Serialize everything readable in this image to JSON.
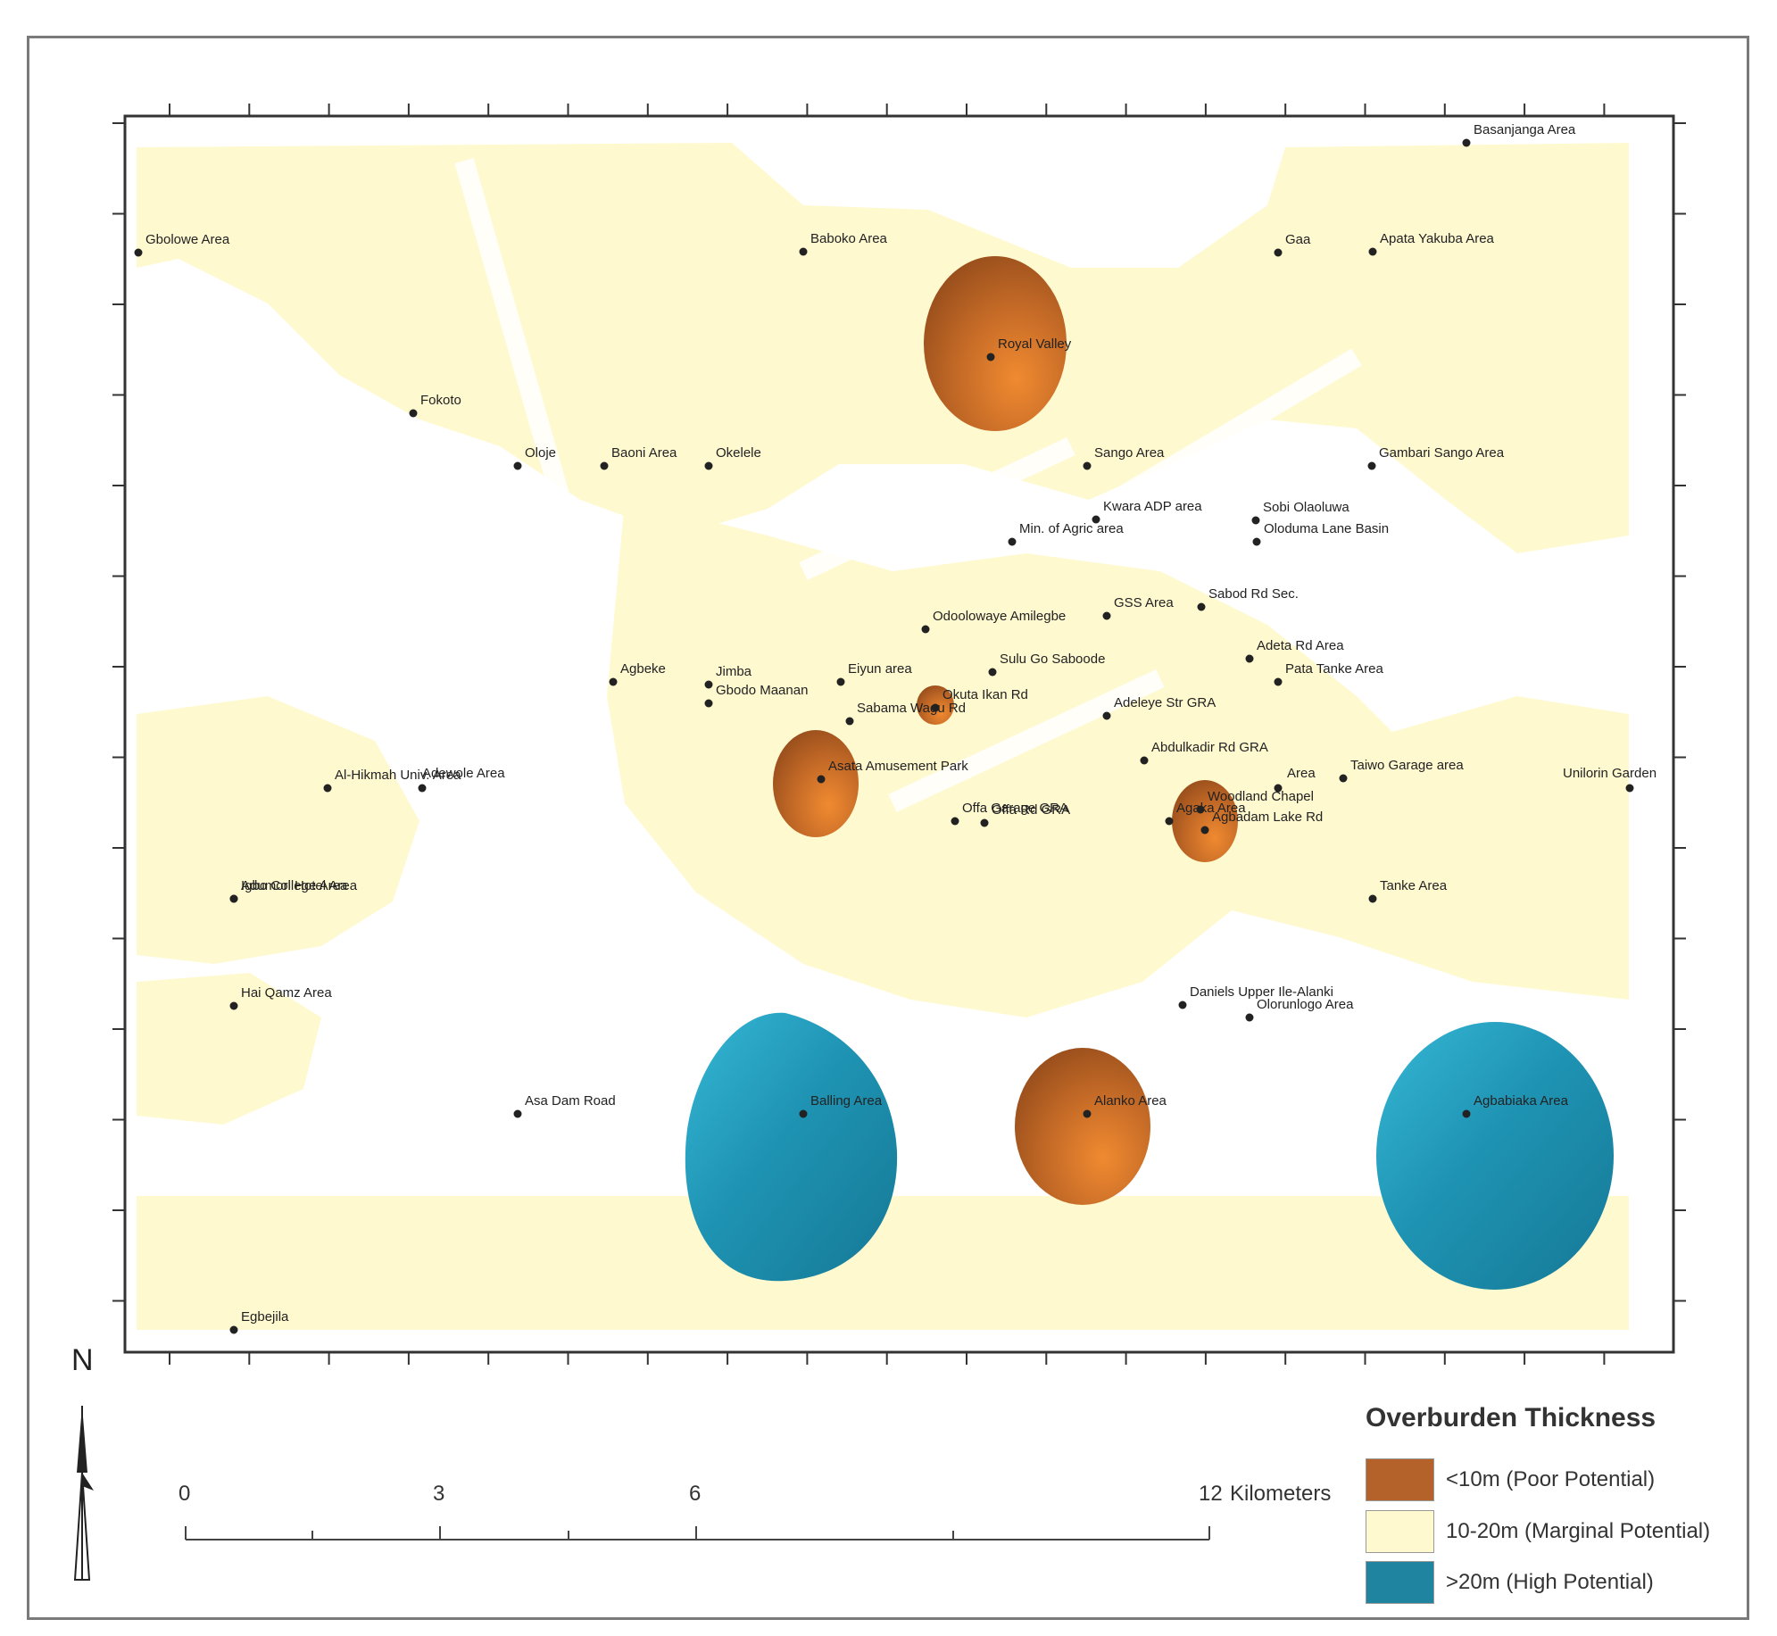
{
  "legend": {
    "title": "Overburden Thickness",
    "items": [
      {
        "label": "<10m (Poor Potential)",
        "color": "#b4612a"
      },
      {
        "label": "10-20m (Marginal Potential)",
        "color": "#fff9d0"
      },
      {
        "label": ">20m (High Potential)",
        "color": "#1e84a0"
      }
    ]
  },
  "north_arrow": {
    "letter": "N"
  },
  "scale_bar": {
    "ticks": [
      "0",
      "3",
      "6",
      "12"
    ],
    "unit": "Kilometers"
  },
  "places": [
    {
      "name": "Gbolowe Area"
    },
    {
      "name": "Baboko Area"
    },
    {
      "name": "Gaa"
    },
    {
      "name": "Apata Yakuba Area"
    },
    {
      "name": "Basanjanga Area"
    },
    {
      "name": "Royal Valley"
    },
    {
      "name": "Fokoto"
    },
    {
      "name": "Oloje"
    },
    {
      "name": "Baoni Area"
    },
    {
      "name": "Okelele"
    },
    {
      "name": "Sango Area"
    },
    {
      "name": "Gambari Sango Area"
    },
    {
      "name": "Kwara ADP area"
    },
    {
      "name": "Sobi Olaoluwa"
    },
    {
      "name": "Min. of Agric area"
    },
    {
      "name": "Oloduma Lane Basin"
    },
    {
      "name": "GSS Area"
    },
    {
      "name": "Sabod Rd Sec."
    },
    {
      "name": "Odoolowaye Amilegbe"
    },
    {
      "name": "Adeta Rd Area"
    },
    {
      "name": "Pata Tanke Area"
    },
    {
      "name": "Agbeke"
    },
    {
      "name": "Jimba"
    },
    {
      "name": "Gbodo Maanan"
    },
    {
      "name": "Eiyun area"
    },
    {
      "name": "Sulu Go Saboode"
    },
    {
      "name": "Okuta Ikan Rd"
    },
    {
      "name": "Adeleye Str GRA"
    },
    {
      "name": "Sabama Wagu Rd"
    },
    {
      "name": "Asata Amusement Park"
    },
    {
      "name": "Abdulkadir Rd GRA"
    },
    {
      "name": "Al-Hikmah Univ. Area"
    },
    {
      "name": "Adewole Area"
    },
    {
      "name": "Woodland Chapel"
    },
    {
      "name": "Area"
    },
    {
      "name": "Taiwo Garage area"
    },
    {
      "name": "Unilorin Garden"
    },
    {
      "name": "Offa Garage GRA"
    },
    {
      "name": "Offa Rd GRA"
    },
    {
      "name": "Agaka Area"
    },
    {
      "name": "Agbadam Lake Rd"
    },
    {
      "name": "Igbo College Area"
    },
    {
      "name": "Adumori Hotel Area"
    },
    {
      "name": "Tanke Area"
    },
    {
      "name": "Hai Qamz Area"
    },
    {
      "name": "Daniels Upper Ile-Alanki"
    },
    {
      "name": "Olorunlogo Area"
    },
    {
      "name": "Asa Dam Road"
    },
    {
      "name": "Balling Area"
    },
    {
      "name": "Alanko Area"
    },
    {
      "name": "Agbabiaka Area"
    },
    {
      "name": "Egbejila"
    }
  ]
}
